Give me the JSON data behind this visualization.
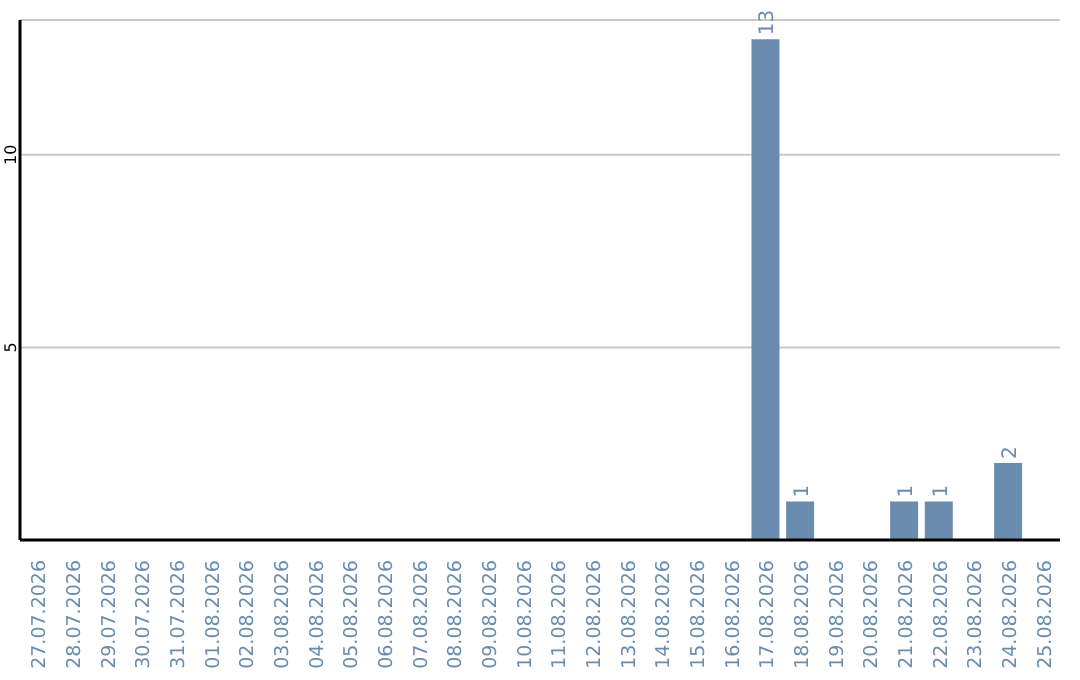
{
  "chart_data": {
    "type": "bar",
    "categories": [
      "27.07.2026",
      "28.07.2026",
      "29.07.2026",
      "30.07.2026",
      "31.07.2026",
      "01.08.2026",
      "02.08.2026",
      "03.08.2026",
      "04.08.2026",
      "05.08.2026",
      "06.08.2026",
      "07.08.2026",
      "08.08.2026",
      "09.08.2026",
      "10.08.2026",
      "11.08.2026",
      "12.08.2026",
      "13.08.2026",
      "14.08.2026",
      "15.08.2026",
      "16.08.2026",
      "17.08.2026",
      "18.08.2026",
      "19.08.2026",
      "20.08.2026",
      "21.08.2026",
      "22.08.2026",
      "23.08.2026",
      "24.08.2026",
      "25.08.2026"
    ],
    "values": [
      0,
      0,
      0,
      0,
      0,
      0,
      0,
      0,
      0,
      0,
      0,
      0,
      0,
      0,
      0,
      0,
      0,
      0,
      0,
      0,
      0,
      13,
      1,
      0,
      0,
      1,
      1,
      0,
      2,
      0
    ],
    "value_labels": [
      null,
      null,
      null,
      null,
      null,
      null,
      null,
      null,
      null,
      null,
      null,
      null,
      null,
      null,
      null,
      null,
      null,
      null,
      null,
      null,
      null,
      "13",
      "1",
      null,
      null,
      "1",
      "1",
      null,
      "2",
      null
    ],
    "color": "#6a8caf",
    "ylim": [
      0,
      13.5
    ],
    "yticks": [
      5,
      10
    ],
    "grid": "y"
  }
}
